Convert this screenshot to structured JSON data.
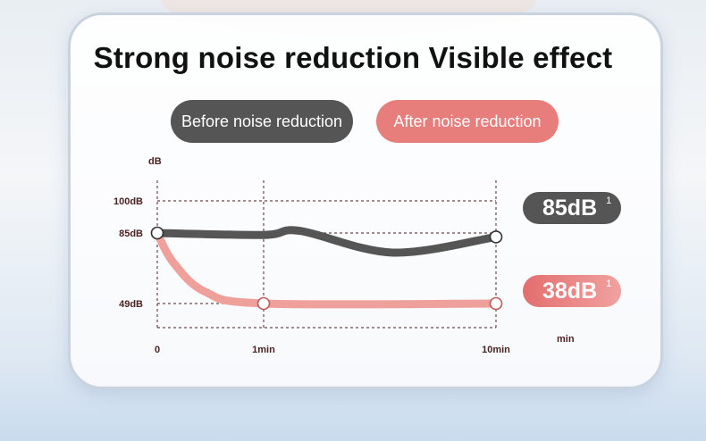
{
  "title": "Strong noise reduction  Visible effect",
  "legend": {
    "before": "Before noise reduction",
    "after": "After noise reduction"
  },
  "badges": [
    {
      "value": "85dB",
      "note": "1"
    },
    {
      "value": "38dB",
      "note": "1"
    }
  ],
  "colors": {
    "before": "#555555",
    "after": "#f0a09a",
    "grid": "#6b4a4a"
  },
  "chart_data": {
    "type": "line",
    "title": "Strong noise reduction  Visible effect",
    "ylabel": "dB",
    "xlabel": "min",
    "y_ticks": [
      {
        "value": 100,
        "label": "100dB"
      },
      {
        "value": 85,
        "label": "85dB"
      },
      {
        "value": 49,
        "label": "49dB"
      }
    ],
    "x_ticks": [
      {
        "value": 0,
        "label": "0"
      },
      {
        "value": 1,
        "label": "1min"
      },
      {
        "value": 10,
        "label": "10min"
      }
    ],
    "grid": true,
    "series": [
      {
        "name": "Before noise reduction",
        "x": [
          0,
          1,
          2.4,
          6.0,
          10
        ],
        "y": [
          85,
          84,
          86,
          75,
          83
        ],
        "markers": [
          0,
          4
        ]
      },
      {
        "name": "After noise reduction",
        "x": [
          0,
          0.15,
          0.45,
          1,
          10
        ],
        "y": [
          85,
          70,
          55,
          49,
          49
        ],
        "markers": [
          0,
          3,
          4
        ]
      }
    ]
  }
}
